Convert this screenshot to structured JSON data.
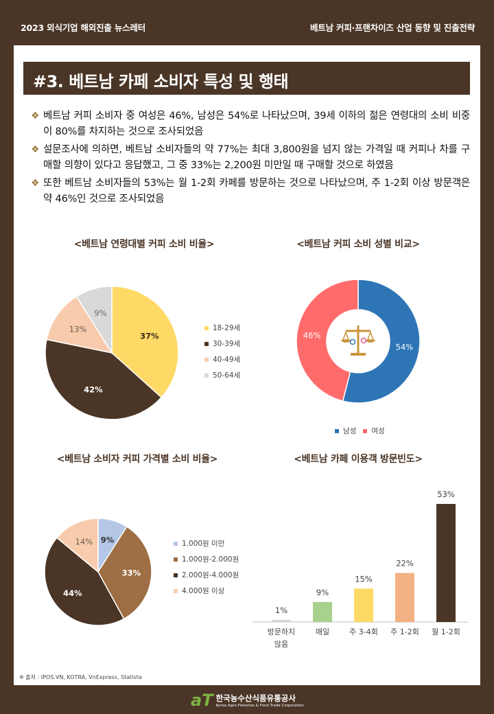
{
  "header": {
    "left": "2023 외식기업 해외진출 뉴스레터",
    "right": "베트남 커피·프랜차이즈 산업 동향 및 진출전략"
  },
  "section_title": "#3. 베트남 카페 소비자 특성 및 행태",
  "bullets": [
    "베트남 커피 소비자 중 여성은 46%, 남성은 54%로 나타났으며, 39세 이하의 젊은 연령대의 소비 비중이 80%를 차지하는 것으로 조사되었음",
    "설문조사에 의하면, 베트남 소비자들의 약 77%는 최대 3,800원을 넘지 않는 가격일 때 커피나 차를 구매할 의향이 있다고 응답했고, 그 중 33%는 2,200원 미만일 때 구매할 것으로 하였음",
    "또한 베트남 소비자들의 53%는 월 1-2회 카페를 방문하는 것으로 나타났으며, 주 1-2회 이상 방문객은 약 46%인 것으로 조사되었음"
  ],
  "bullet_icon": "diamond-bullet-icon",
  "chart_data": [
    {
      "type": "pie",
      "title": "<베트남 연령대별 커피 소비 비율>",
      "categories": [
        "18-29세",
        "30-39세",
        "40-49세",
        "50-64세"
      ],
      "values": [
        37,
        42,
        13,
        9
      ],
      "labels": [
        "37%",
        "42%",
        "13%",
        "9%"
      ],
      "colors": [
        "#ffd966",
        "#4a3526",
        "#f8cbad",
        "#d9d9d9"
      ],
      "legend": "right"
    },
    {
      "type": "pie",
      "title": "<베트남 커피 소비 성별 비교>",
      "categories": [
        "남성",
        "여성"
      ],
      "values": [
        54,
        46
      ],
      "labels": [
        "54%",
        "46%"
      ],
      "colors": [
        "#2e75b6",
        "#ff6b6b"
      ],
      "legend": "bottom",
      "center_icon": "scale-gender-icon"
    },
    {
      "type": "pie",
      "title": "<베트남 소비자 커피 가격별 소비 비율>",
      "categories": [
        "1.000원 미만",
        "1.000원-2.000원",
        "2.000원-4.000원",
        "4.000원 이상"
      ],
      "values": [
        9,
        33,
        44,
        14
      ],
      "labels": [
        "9%",
        "33%",
        "44%",
        "14%"
      ],
      "colors": [
        "#b4c7e7",
        "#9e6e44",
        "#4a3526",
        "#f8cbad"
      ],
      "legend": "right"
    },
    {
      "type": "bar",
      "title": "<베트남 카페 이용객 방문빈도>",
      "categories": [
        "방문하지 않음",
        "매일",
        "주 3-4회",
        "주 1-2회",
        "월 1-2회"
      ],
      "values": [
        1,
        9,
        15,
        22,
        53
      ],
      "labels": [
        "1%",
        "9%",
        "15%",
        "22%",
        "53%"
      ],
      "colors": [
        "#d9d9d9",
        "#a9d18e",
        "#ffd966",
        "#f4b183",
        "#4a3526"
      ],
      "ylim": [
        0,
        53
      ],
      "grid": false
    }
  ],
  "source": "※ 출처 : IPOS.VN, KOTRA, VnExpress, Statista",
  "footer": {
    "logo_mark": "aT",
    "logo_ko": "한국농수산식품유통공사",
    "logo_en": "Korea Agro-Fisheries & Food Trade Corporation"
  }
}
